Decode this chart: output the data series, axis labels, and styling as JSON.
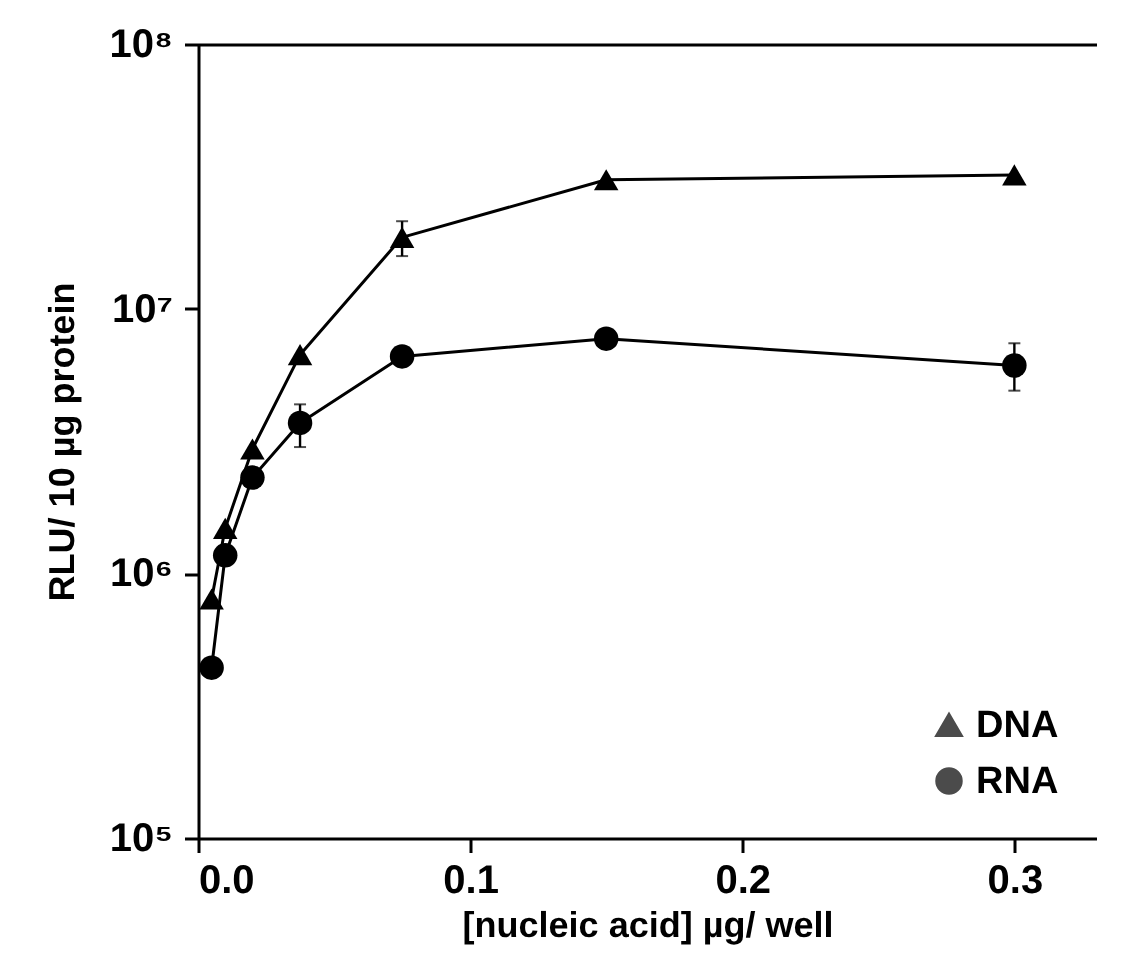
{
  "chart_data": {
    "type": "line",
    "xlabel": "[nucleic acid] µg/ well",
    "ylabel": "RLU/ 10 µg protein",
    "x": [
      0.005,
      0.01,
      0.02,
      0.0375,
      0.075,
      0.15,
      0.3
    ],
    "series": [
      {
        "name": "DNA",
        "color": "#000000",
        "marker": "triangle",
        "values": [
          800000,
          1480000,
          2950000,
          6700000,
          18600000,
          30700000,
          32000000
        ],
        "errors": [
          null,
          null,
          null,
          null,
          [
            15800000,
            21400000
          ],
          null,
          null
        ]
      },
      {
        "name": "RNA",
        "color": "#000000",
        "marker": "circle",
        "values": [
          440000,
          1170000,
          2300000,
          3700000,
          6600000,
          7700000,
          6100000
        ],
        "errors": [
          null,
          null,
          null,
          [
            3000000,
            4350000
          ],
          null,
          null,
          [
            4900000,
            7400000
          ]
        ]
      }
    ],
    "log": "y",
    "xlim": [
      0,
      0.33
    ],
    "xticks": [
      {
        "value": 0,
        "label": "0.0"
      },
      0.1,
      0.2,
      0.3
    ],
    "ylim": [
      100000,
      100000000
    ],
    "yticks": [
      {
        "value": 100000,
        "label": "10⁵"
      },
      {
        "value": 1000000,
        "label": "10⁶"
      },
      {
        "value": 10000000,
        "label": "10⁷"
      },
      {
        "value": 100000000,
        "label": "10⁸"
      }
    ],
    "legend": "bottom right",
    "grid": false
  }
}
